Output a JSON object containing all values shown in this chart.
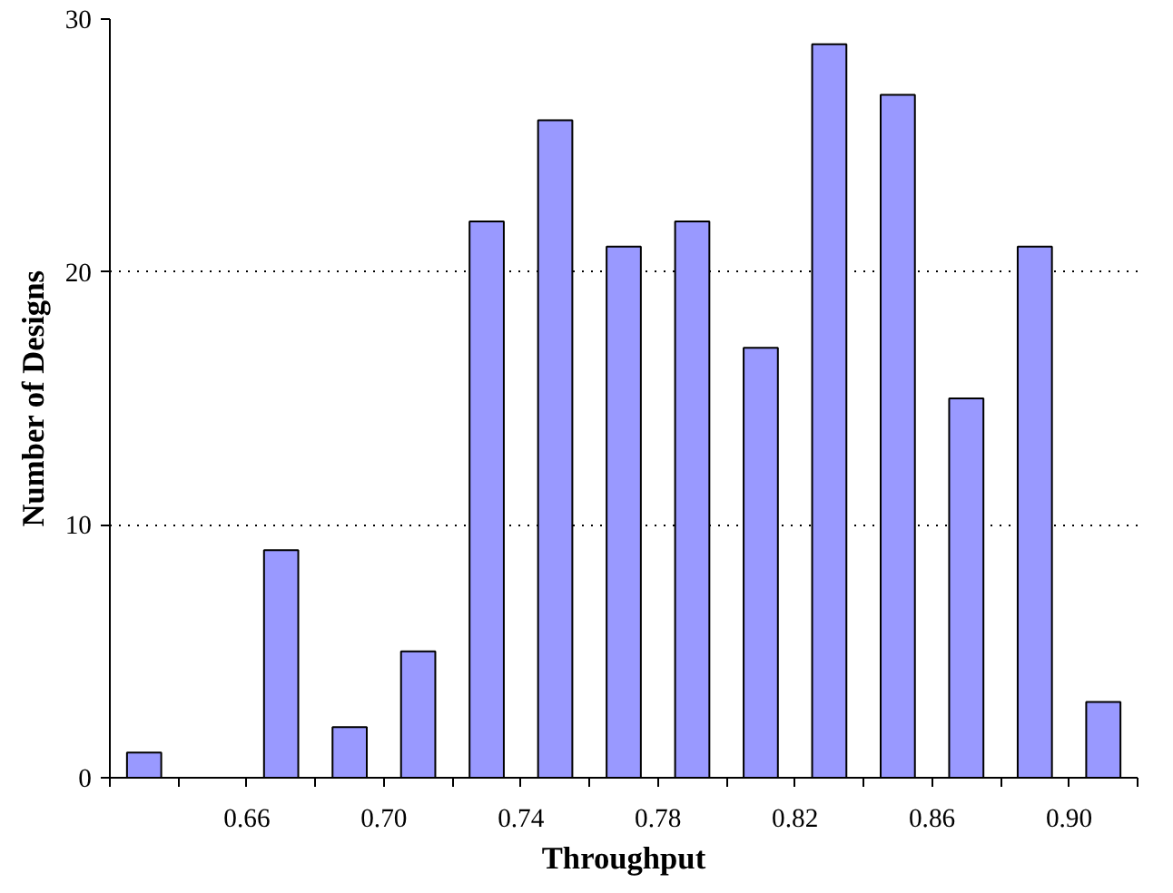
{
  "chart_data": {
    "type": "histogram",
    "xlabel": "Throughput",
    "ylabel": "Number of Designs",
    "bins": [
      0.62,
      0.64,
      0.66,
      0.68,
      0.7,
      0.72,
      0.74,
      0.76,
      0.78,
      0.8,
      0.82,
      0.84,
      0.86,
      0.88,
      0.9,
      0.92
    ],
    "values": [
      1,
      0,
      9,
      2,
      5,
      22,
      26,
      21,
      22,
      17,
      29,
      27,
      15,
      21,
      3
    ],
    "color": "#9999ff",
    "xlim": [
      0.62,
      0.92
    ],
    "xticks": [
      {
        "value": 0.62,
        "label": null
      },
      {
        "value": 0.64,
        "label": null
      },
      {
        "value": 0.66,
        "label": "0.66"
      },
      {
        "value": 0.68,
        "label": null
      },
      {
        "value": 0.7,
        "label": "0.70"
      },
      {
        "value": 0.72,
        "label": null
      },
      {
        "value": 0.74,
        "label": "0.74"
      },
      {
        "value": 0.76,
        "label": null
      },
      {
        "value": 0.78,
        "label": "0.78"
      },
      {
        "value": 0.8,
        "label": null
      },
      {
        "value": 0.82,
        "label": "0.82"
      },
      {
        "value": 0.84,
        "label": null
      },
      {
        "value": 0.86,
        "label": "0.86"
      },
      {
        "value": 0.88,
        "label": null
      },
      {
        "value": 0.9,
        "label": "0.90"
      },
      {
        "value": 0.92,
        "label": null
      }
    ],
    "ylim": [
      0,
      30
    ],
    "yticks": [
      0,
      10,
      20,
      30
    ],
    "grid": "y"
  }
}
